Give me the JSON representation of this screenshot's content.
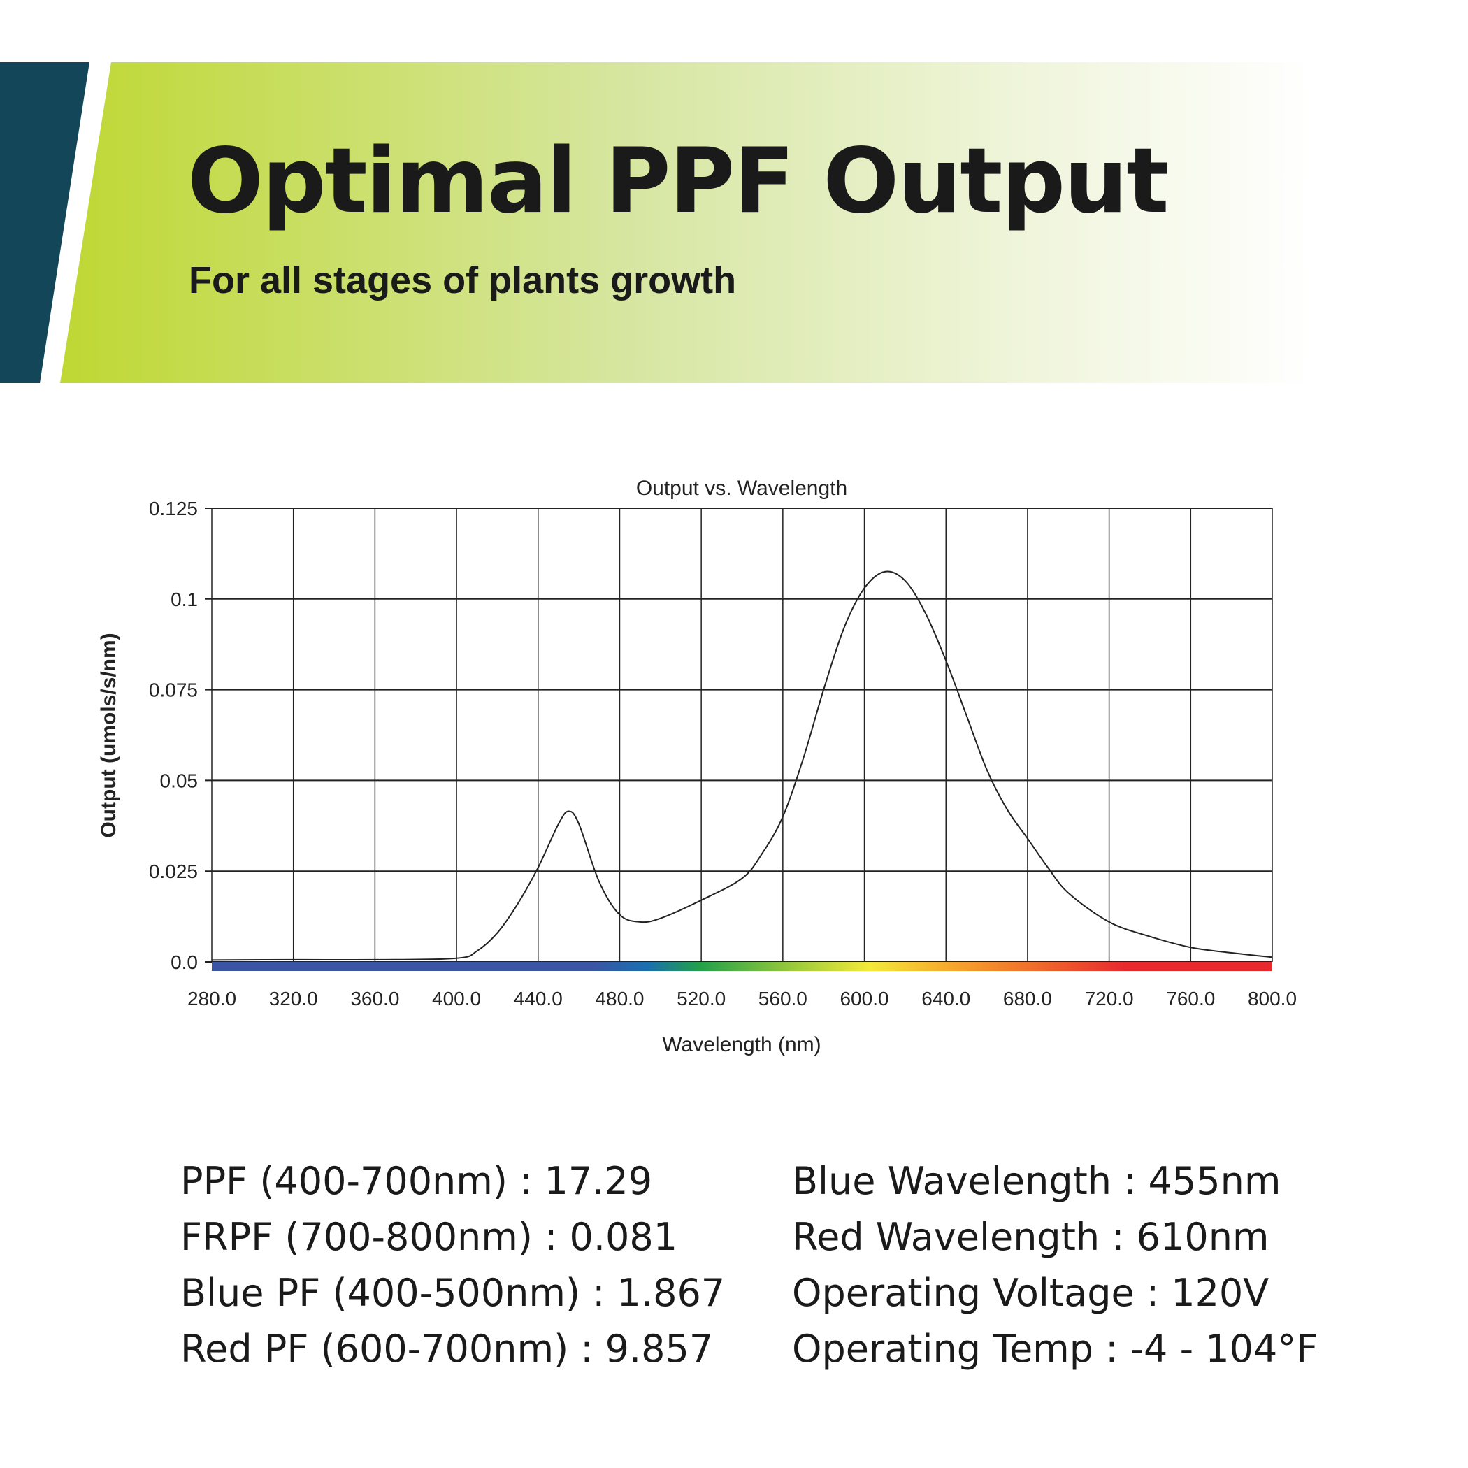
{
  "header": {
    "title": "Optimal PPF Output",
    "subtitle": "For all stages of plants growth",
    "colors": {
      "accent_dark": "#124658",
      "accent_green": "#bfd833"
    }
  },
  "chart_data": {
    "type": "line",
    "title": "Output vs. Wavelength",
    "xlabel": "Wavelength (nm)",
    "ylabel": "Output (umols/s/nm)",
    "xlim": [
      280,
      800
    ],
    "ylim": [
      0,
      0.125
    ],
    "grid": true,
    "x_ticks": [
      "280.0",
      "320.0",
      "360.0",
      "400.0",
      "440.0",
      "480.0",
      "520.0",
      "560.0",
      "600.0",
      "640.0",
      "680.0",
      "720.0",
      "760.0",
      "800.0"
    ],
    "y_ticks": [
      "0.0",
      "0.025",
      "0.05",
      "0.075",
      "0.1",
      "0.125"
    ],
    "spectrum_bar": true,
    "series": [
      {
        "name": "Output",
        "color": "#222222",
        "x": [
          280,
          320,
          360,
          400,
          410,
          420,
          430,
          440,
          450,
          455,
          460,
          470,
          480,
          490,
          500,
          520,
          540,
          550,
          560,
          570,
          580,
          590,
          600,
          610,
          620,
          630,
          640,
          650,
          660,
          670,
          680,
          690,
          700,
          720,
          740,
          760,
          780,
          800
        ],
        "y": [
          0.0005,
          0.0006,
          0.0006,
          0.001,
          0.003,
          0.008,
          0.016,
          0.026,
          0.038,
          0.0415,
          0.038,
          0.022,
          0.013,
          0.011,
          0.012,
          0.017,
          0.023,
          0.03,
          0.04,
          0.056,
          0.075,
          0.092,
          0.103,
          0.1075,
          0.105,
          0.096,
          0.083,
          0.068,
          0.053,
          0.042,
          0.034,
          0.026,
          0.019,
          0.011,
          0.007,
          0.004,
          0.0025,
          0.0013
        ]
      }
    ]
  },
  "specs": {
    "left": [
      "PPF (400-700nm) : 17.29",
      "FRPF (700-800nm) : 0.081",
      "Blue PF (400-500nm) : 1.867",
      "Red PF (600-700nm) : 9.857"
    ],
    "right": [
      "Blue Wavelength : 455nm",
      "Red Wavelength : 610nm",
      "Operating Voltage : 120V",
      "Operating Temp : -4 - 104°F"
    ]
  }
}
